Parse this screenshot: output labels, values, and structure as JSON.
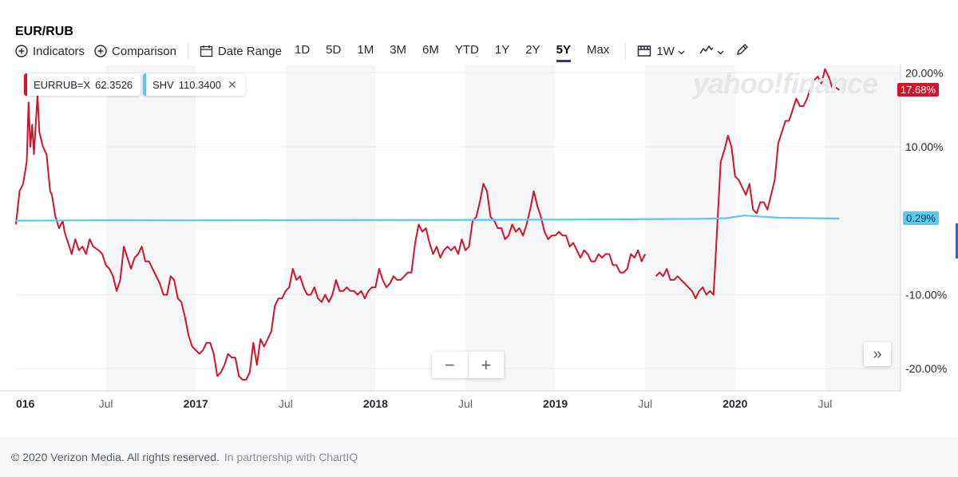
{
  "header": {
    "title": "EUR/RUB"
  },
  "toolbar": {
    "indicators_label": "Indicators",
    "comparison_label": "Comparison",
    "date_range_label": "Date Range",
    "ranges": [
      "1D",
      "5D",
      "1M",
      "3M",
      "6M",
      "YTD",
      "1Y",
      "2Y",
      "5Y",
      "Max"
    ],
    "active_range": "5Y",
    "interval_label": "1W",
    "icons": {
      "indicators": "plus-circle-icon",
      "comparison": "plus-circle-icon",
      "date_range": "calendar-icon",
      "interval": "candle-icon",
      "chart_type": "line-chart-icon",
      "draw": "pencil-icon"
    }
  },
  "legend": {
    "series": [
      {
        "label": "EURRUB=X",
        "value": "62.3526",
        "color": "#d0142c"
      },
      {
        "label": "SHV",
        "value": "110.3400",
        "color": "#5bc8ee"
      }
    ],
    "close_symbol": "✕"
  },
  "watermark": "yahoo!finance",
  "chart_data": {
    "type": "line",
    "x_axis_labels": [
      "016",
      "Jul",
      "2017",
      "Jul",
      "2018",
      "Jul",
      "2019",
      "Jul",
      "2020",
      "Jul"
    ],
    "x_axis_bold_labels": [
      "016",
      "2017",
      "2018",
      "2019",
      "2020"
    ],
    "y_ticks": [
      20,
      10,
      -10,
      -20
    ],
    "y_tick_labels": [
      "20.00%",
      "10.00%",
      "-10.00%",
      "-20.00%"
    ],
    "ylim": [
      -23,
      21
    ],
    "xlim": [
      2016.0,
      2020.92
    ],
    "y_unit": "%",
    "grid": true,
    "alternate_bands": true,
    "current_tags": [
      {
        "label": "17.68%",
        "value": 17.68,
        "bg": "#d0142c",
        "fg": "#ffffff"
      },
      {
        "label": "0.29%",
        "value": 0.29,
        "bg": "#5bc8ee",
        "fg": "#0a3a55"
      }
    ],
    "series": [
      {
        "name": "EURRUB=X",
        "color": "#d0142c",
        "points": [
          [
            2016.0,
            -0.5
          ],
          [
            2016.02,
            4
          ],
          [
            2016.04,
            5
          ],
          [
            2016.06,
            8
          ],
          [
            2016.07,
            16
          ],
          [
            2016.08,
            10
          ],
          [
            2016.09,
            13
          ],
          [
            2016.1,
            9
          ],
          [
            2016.12,
            17
          ],
          [
            2016.13,
            12
          ],
          [
            2016.15,
            10
          ],
          [
            2016.17,
            9
          ],
          [
            2016.19,
            4
          ],
          [
            2016.2,
            3.5
          ],
          [
            2016.22,
            0.5
          ],
          [
            2016.24,
            -1
          ],
          [
            2016.26,
            0
          ],
          [
            2016.27,
            -1.5
          ],
          [
            2016.29,
            -3
          ],
          [
            2016.31,
            -4.5
          ],
          [
            2016.33,
            -2.5
          ],
          [
            2016.35,
            -4
          ],
          [
            2016.37,
            -3.5
          ],
          [
            2016.39,
            -4.5
          ],
          [
            2016.41,
            -2.5
          ],
          [
            2016.43,
            -3.5
          ],
          [
            2016.46,
            -4
          ],
          [
            2016.48,
            -4.5
          ],
          [
            2016.5,
            -6
          ],
          [
            2016.52,
            -6.5
          ],
          [
            2016.54,
            -7.5
          ],
          [
            2016.56,
            -9.5
          ],
          [
            2016.58,
            -8
          ],
          [
            2016.6,
            -3.5
          ],
          [
            2016.62,
            -5
          ],
          [
            2016.64,
            -6.5
          ],
          [
            2016.66,
            -5
          ],
          [
            2016.68,
            -4.5
          ],
          [
            2016.7,
            -3.5
          ],
          [
            2016.72,
            -5.5
          ],
          [
            2016.74,
            -5.5
          ],
          [
            2016.76,
            -6.5
          ],
          [
            2016.78,
            -7.5
          ],
          [
            2016.8,
            -8.5
          ],
          [
            2016.82,
            -10
          ],
          [
            2016.84,
            -10
          ],
          [
            2016.86,
            -7.5
          ],
          [
            2016.88,
            -8
          ],
          [
            2016.9,
            -10.5
          ],
          [
            2016.92,
            -11
          ],
          [
            2016.94,
            -13
          ],
          [
            2016.96,
            -15.5
          ],
          [
            2016.98,
            -17
          ],
          [
            2017.0,
            -17.5
          ],
          [
            2017.02,
            -18
          ],
          [
            2017.04,
            -17.5
          ],
          [
            2017.06,
            -16.5
          ],
          [
            2017.08,
            -16.5
          ],
          [
            2017.1,
            -18
          ],
          [
            2017.12,
            -21
          ],
          [
            2017.14,
            -20.5
          ],
          [
            2017.16,
            -19.5
          ],
          [
            2017.18,
            -18
          ],
          [
            2017.2,
            -18.5
          ],
          [
            2017.22,
            -18.5
          ],
          [
            2017.24,
            -21
          ],
          [
            2017.26,
            -21.5
          ],
          [
            2017.28,
            -21.5
          ],
          [
            2017.3,
            -20.5
          ],
          [
            2017.32,
            -16.5
          ],
          [
            2017.34,
            -19.5
          ],
          [
            2017.36,
            -16
          ],
          [
            2017.38,
            -17
          ],
          [
            2017.4,
            -16
          ],
          [
            2017.42,
            -15
          ],
          [
            2017.44,
            -11.5
          ],
          [
            2017.46,
            -10.5
          ],
          [
            2017.48,
            -10.5
          ],
          [
            2017.5,
            -9.5
          ],
          [
            2017.52,
            -9
          ],
          [
            2017.54,
            -6.5
          ],
          [
            2017.56,
            -8
          ],
          [
            2017.58,
            -7.5
          ],
          [
            2017.6,
            -9
          ],
          [
            2017.62,
            -10
          ],
          [
            2017.64,
            -10
          ],
          [
            2017.66,
            -9
          ],
          [
            2017.68,
            -10.5
          ],
          [
            2017.7,
            -11
          ],
          [
            2017.72,
            -10
          ],
          [
            2017.74,
            -11
          ],
          [
            2017.76,
            -10
          ],
          [
            2017.78,
            -8
          ],
          [
            2017.8,
            -9.5
          ],
          [
            2017.82,
            -9.5
          ],
          [
            2017.84,
            -9
          ],
          [
            2017.86,
            -9.5
          ],
          [
            2017.88,
            -9.5
          ],
          [
            2017.9,
            -10
          ],
          [
            2017.92,
            -9.5
          ],
          [
            2017.94,
            -10.5
          ],
          [
            2017.96,
            -9.5
          ],
          [
            2017.98,
            -9
          ],
          [
            2018.0,
            -9
          ],
          [
            2018.02,
            -6.5
          ],
          [
            2018.04,
            -8
          ],
          [
            2018.06,
            -9
          ],
          [
            2018.08,
            -8.5
          ],
          [
            2018.1,
            -7.5
          ],
          [
            2018.12,
            -8
          ],
          [
            2018.14,
            -8
          ],
          [
            2018.16,
            -7.5
          ],
          [
            2018.18,
            -7
          ],
          [
            2018.2,
            -7
          ],
          [
            2018.22,
            -3
          ],
          [
            2018.24,
            -0.5
          ],
          [
            2018.25,
            -1
          ],
          [
            2018.26,
            -1.5
          ],
          [
            2018.28,
            -1
          ],
          [
            2018.3,
            -3
          ],
          [
            2018.32,
            -4.5
          ],
          [
            2018.34,
            -3.5
          ],
          [
            2018.36,
            -5
          ],
          [
            2018.38,
            -4
          ],
          [
            2018.4,
            -3.5
          ],
          [
            2018.42,
            -4
          ],
          [
            2018.44,
            -3.5
          ],
          [
            2018.46,
            -4.5
          ],
          [
            2018.48,
            -2.5
          ],
          [
            2018.5,
            -4
          ],
          [
            2018.52,
            -3.5
          ],
          [
            2018.54,
            0
          ],
          [
            2018.56,
            0.5
          ],
          [
            2018.58,
            2.5
          ],
          [
            2018.6,
            5
          ],
          [
            2018.62,
            4
          ],
          [
            2018.64,
            0.5
          ],
          [
            2018.66,
            0
          ],
          [
            2018.68,
            -1
          ],
          [
            2018.7,
            -1
          ],
          [
            2018.72,
            -2.5
          ],
          [
            2018.74,
            -2
          ],
          [
            2018.76,
            -0.5
          ],
          [
            2018.78,
            -1.5
          ],
          [
            2018.8,
            -1
          ],
          [
            2018.82,
            -2
          ],
          [
            2018.84,
            -0.5
          ],
          [
            2018.86,
            1.5
          ],
          [
            2018.88,
            4
          ],
          [
            2018.9,
            2
          ],
          [
            2018.92,
            0.5
          ],
          [
            2018.94,
            -1.5
          ],
          [
            2018.96,
            -2.5
          ],
          [
            2018.98,
            -2
          ],
          [
            2019.0,
            -2
          ],
          [
            2019.02,
            -1.5
          ],
          [
            2019.04,
            -2
          ],
          [
            2019.06,
            -2
          ],
          [
            2019.08,
            -3.5
          ],
          [
            2019.1,
            -3
          ],
          [
            2019.12,
            -4
          ],
          [
            2019.14,
            -5
          ],
          [
            2019.16,
            -4
          ],
          [
            2019.18,
            -4.5
          ],
          [
            2019.2,
            -5.5
          ],
          [
            2019.22,
            -5.5
          ],
          [
            2019.24,
            -4.5
          ],
          [
            2019.26,
            -5
          ],
          [
            2019.28,
            -4.5
          ],
          [
            2019.3,
            -4.5
          ],
          [
            2019.32,
            -6
          ],
          [
            2019.34,
            -6
          ],
          [
            2019.36,
            -7
          ],
          [
            2019.38,
            -7
          ],
          [
            2019.4,
            -6.5
          ],
          [
            2019.42,
            -4.5
          ],
          [
            2019.44,
            -5
          ],
          [
            2019.46,
            -4
          ],
          [
            2019.48,
            -5.5
          ],
          [
            2019.5,
            -4.5
          ],
          null,
          [
            2019.56,
            -7.5
          ],
          [
            2019.58,
            -7
          ],
          [
            2019.6,
            -7.5
          ],
          [
            2019.62,
            -6.5
          ],
          [
            2019.64,
            -8
          ],
          [
            2019.66,
            -8
          ],
          [
            2019.68,
            -7.5
          ],
          [
            2019.7,
            -8
          ],
          [
            2019.72,
            -8.5
          ],
          [
            2019.74,
            -9
          ],
          [
            2019.76,
            -9.5
          ],
          [
            2019.78,
            -10.5
          ],
          [
            2019.8,
            -9.5
          ],
          [
            2019.82,
            -9
          ],
          [
            2019.84,
            -10
          ],
          [
            2019.86,
            -9.5
          ],
          [
            2019.88,
            -10
          ],
          [
            2019.9,
            -1
          ],
          [
            2019.92,
            8
          ],
          [
            2019.94,
            9.5
          ],
          [
            2019.96,
            11.5
          ],
          [
            2019.98,
            10
          ],
          [
            2020.0,
            6
          ],
          [
            2020.02,
            5.5
          ],
          [
            2020.04,
            4.5
          ],
          [
            2020.06,
            3.5
          ],
          [
            2020.08,
            5
          ],
          [
            2020.1,
            1.5
          ],
          [
            2020.12,
            1
          ],
          [
            2020.14,
            2.5
          ],
          [
            2020.16,
            2.5
          ],
          [
            2020.18,
            1.5
          ],
          [
            2020.2,
            3.5
          ],
          [
            2020.22,
            5.5
          ],
          [
            2020.24,
            10.5
          ],
          [
            2020.26,
            12
          ],
          [
            2020.28,
            13.5
          ],
          [
            2020.3,
            13.5
          ],
          [
            2020.32,
            15
          ],
          [
            2020.34,
            16.5
          ],
          [
            2020.36,
            15.5
          ],
          [
            2020.38,
            15.5
          ],
          [
            2020.4,
            16.5
          ],
          [
            2020.42,
            18
          ],
          [
            2020.44,
            19
          ],
          [
            2020.46,
            19.5
          ],
          [
            2020.48,
            18.5
          ],
          [
            2020.5,
            20.5
          ],
          [
            2020.52,
            19.5
          ],
          [
            2020.54,
            18
          ],
          [
            2020.56,
            18
          ],
          [
            2020.58,
            17.68
          ]
        ]
      },
      {
        "name": "SHV",
        "color": "#5bc8ee",
        "points": [
          [
            2016.0,
            0
          ],
          [
            2016.3,
            0.05
          ],
          [
            2016.6,
            0.08
          ],
          [
            2017.0,
            0.05
          ],
          [
            2017.4,
            0.07
          ],
          [
            2017.8,
            0.09
          ],
          [
            2018.2,
            0.1
          ],
          [
            2018.6,
            0.12
          ],
          [
            2019.0,
            0.15
          ],
          [
            2019.4,
            0.2
          ],
          [
            2019.8,
            0.25
          ],
          [
            2019.95,
            0.35
          ],
          [
            2020.05,
            0.7
          ],
          [
            2020.25,
            0.4
          ],
          [
            2020.58,
            0.29
          ]
        ]
      }
    ]
  },
  "zoom": {
    "minus": "−",
    "plus": "+"
  },
  "expand_symbol": "»",
  "footer": {
    "copyright": "© 2020 Verizon Media. All rights reserved.",
    "partner": "In partnership with ChartIQ"
  }
}
